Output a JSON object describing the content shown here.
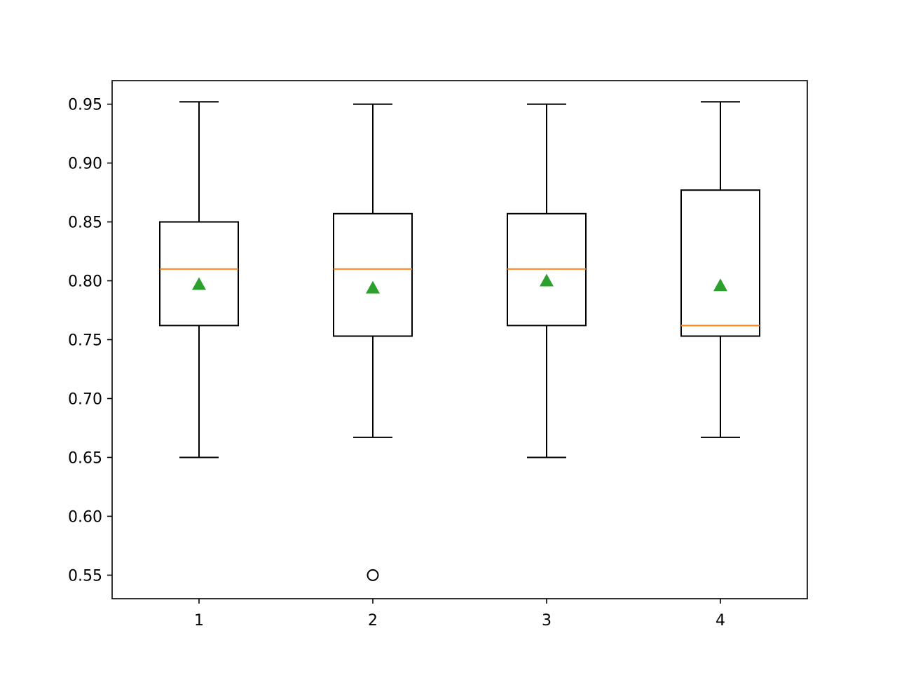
{
  "chart_data": {
    "type": "box",
    "title": "",
    "xlabel": "",
    "ylabel": "",
    "categories": [
      "1",
      "2",
      "3",
      "4"
    ],
    "ylim": [
      0.53,
      0.97
    ],
    "y_ticks": [
      0.55,
      0.6,
      0.65,
      0.7,
      0.75,
      0.8,
      0.85,
      0.9,
      0.95
    ],
    "y_tick_labels": [
      "0.55",
      "0.60",
      "0.65",
      "0.70",
      "0.75",
      "0.80",
      "0.85",
      "0.90",
      "0.95"
    ],
    "grid": false,
    "boxes": [
      {
        "category": "1",
        "whisker_low": 0.65,
        "q1": 0.762,
        "median": 0.81,
        "q3": 0.85,
        "whisker_high": 0.952,
        "mean": 0.797,
        "outliers": []
      },
      {
        "category": "2",
        "whisker_low": 0.667,
        "q1": 0.753,
        "median": 0.81,
        "q3": 0.857,
        "whisker_high": 0.95,
        "mean": 0.794,
        "outliers": [
          0.55
        ]
      },
      {
        "category": "3",
        "whisker_low": 0.65,
        "q1": 0.762,
        "median": 0.81,
        "q3": 0.857,
        "whisker_high": 0.95,
        "mean": 0.8,
        "outliers": []
      },
      {
        "category": "4",
        "whisker_low": 0.667,
        "q1": 0.753,
        "median": 0.762,
        "q3": 0.877,
        "whisker_high": 0.952,
        "mean": 0.796,
        "outliers": []
      }
    ],
    "colors": {
      "box": "#000000",
      "median": "#ff7f0e",
      "mean_marker": "#2ca02c",
      "outlier": "#000000"
    },
    "mean_marker_shape": "triangle",
    "outlier_marker_shape": "circle"
  }
}
